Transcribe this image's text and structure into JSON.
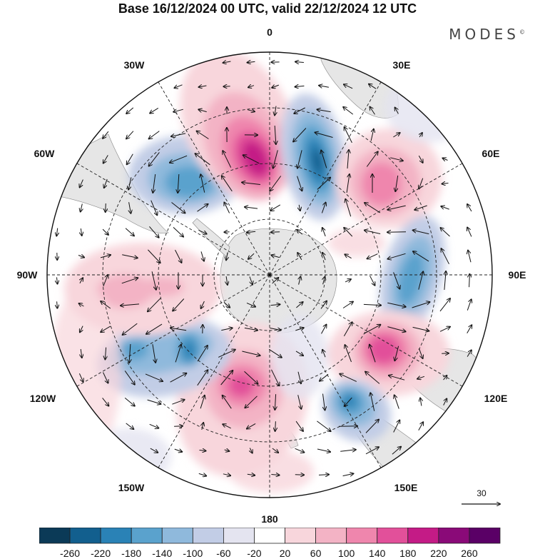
{
  "title": "Base 16/12/2024 00 UTC, valid 22/12/2024 12 UTC",
  "logo": "MODES",
  "logo_mark": "©",
  "labels": {
    "north": "0",
    "south": "180",
    "west": "90W",
    "east": "90E",
    "w30": "30W",
    "e30": "30E",
    "w60": "60W",
    "e60": "60E",
    "w120": "120W",
    "e120": "120E",
    "w150": "150W",
    "e150": "150E"
  },
  "reference_vector": "30",
  "colorbar": {
    "ticks": [
      "-260",
      "-220",
      "-180",
      "-140",
      "-100",
      "-60",
      "-20",
      "20",
      "60",
      "100",
      "140",
      "180",
      "220",
      "260"
    ],
    "colors": [
      "#0b3a57",
      "#125f8e",
      "#2a82b6",
      "#5aa2cd",
      "#8fb9dc",
      "#c2cde6",
      "#e4e4f0",
      "#ffffff",
      "#f8d6dc",
      "#f3b3c5",
      "#ef86ad",
      "#e2509a",
      "#c41b86",
      "#8a0a78",
      "#5a0066"
    ]
  },
  "anomalies": [
    {
      "name": "neg-30w",
      "sign": "neg",
      "level": 4
    },
    {
      "name": "pos-10w",
      "sign": "pos",
      "level": 5
    },
    {
      "name": "neg-20e",
      "sign": "neg",
      "level": 5
    },
    {
      "name": "pos-60e",
      "sign": "pos",
      "level": 3
    },
    {
      "name": "neg-90e",
      "sign": "neg",
      "level": 3
    },
    {
      "name": "pos-120e",
      "sign": "pos",
      "level": 4
    },
    {
      "name": "neg-150e",
      "sign": "neg",
      "level": 4
    },
    {
      "name": "pos-150w",
      "sign": "pos",
      "level": 4
    },
    {
      "name": "neg-125w",
      "sign": "neg",
      "level": 4
    },
    {
      "name": "pos-90w",
      "sign": "pos",
      "level": 2
    }
  ]
}
